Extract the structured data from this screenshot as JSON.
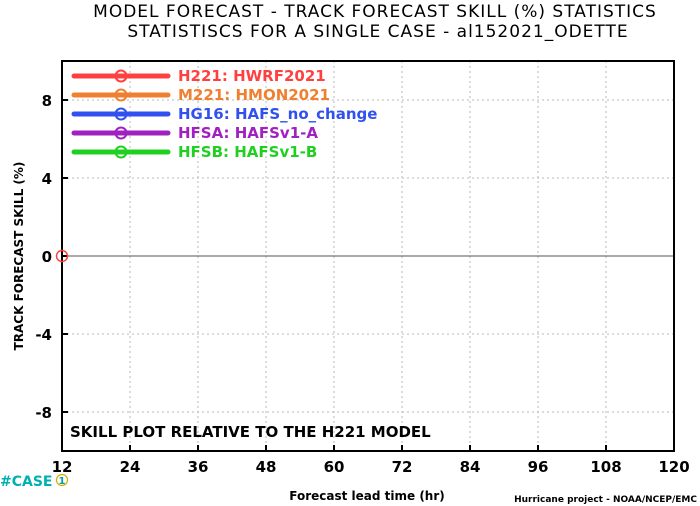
{
  "chart_data": {
    "type": "line",
    "title": "MODEL FORECAST - TRACK FORECAST SKILL (%) STATISTICS",
    "subtitle": "STATISTISCS FOR A SINGLE CASE - al152021_ODETTE",
    "xlabel": "Forecast lead time (hr)",
    "ylabel": "TRACK FORECAST SKILL (%)",
    "xlim": [
      12,
      120
    ],
    "ylim": [
      -10,
      10
    ],
    "xticks": [
      12,
      24,
      36,
      48,
      60,
      72,
      84,
      96,
      108,
      120
    ],
    "yticks": [
      8,
      4,
      0,
      -4,
      -8
    ],
    "grid": true,
    "legend_position": "top-left",
    "annotation": "SKILL PLOT RELATIVE TO THE H221 MODEL",
    "case_label": "#CASE",
    "case_counts": [
      {
        "x": 12,
        "count": "1"
      }
    ],
    "credit": "Hurricane project - NOAA/NCEP/EMC",
    "series": [
      {
        "code": "H221",
        "name": "HWRF2021",
        "color": "#ff4040",
        "points": [
          {
            "x": 12,
            "y": 0
          }
        ]
      },
      {
        "code": "M221",
        "name": "HMON2021",
        "color": "#f08030",
        "points": []
      },
      {
        "code": "HG16",
        "name": "HAFS_no_change",
        "color": "#3050f0",
        "points": []
      },
      {
        "code": "HFSA",
        "name": "HAFSv1-A",
        "color": "#a020c0",
        "points": []
      },
      {
        "code": "HFSB",
        "name": "HAFSv1-B",
        "color": "#20d020",
        "points": []
      }
    ]
  }
}
